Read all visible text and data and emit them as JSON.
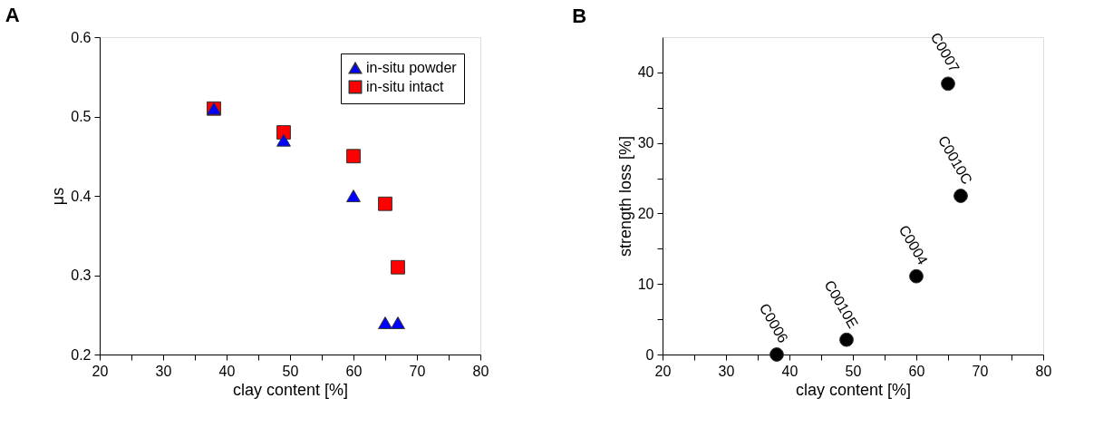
{
  "chart_data": [
    {
      "type": "scatter",
      "title": "A",
      "xlabel": "clay content [%]",
      "ylabel": "μs",
      "xlim": [
        20,
        80
      ],
      "ylim": [
        0.2,
        0.6
      ],
      "xticks": [
        20,
        {
          "value": 25,
          "label": null
        },
        30,
        {
          "value": 35,
          "label": null
        },
        40,
        {
          "value": 45,
          "label": null
        },
        50,
        {
          "value": 55,
          "label": null
        },
        60,
        {
          "value": 65,
          "label": null
        },
        70,
        {
          "value": 75,
          "label": null
        },
        80
      ],
      "yticks": [
        0.2,
        0.3,
        0.4,
        0.5,
        0.6
      ],
      "grid": false,
      "legend": "top right",
      "series": [
        {
          "name": "in-situ powder",
          "color": "#0000ff",
          "marker": "triangle",
          "x": [
            38,
            49,
            60,
            65,
            67
          ],
          "values": [
            0.51,
            0.47,
            0.4,
            0.24,
            0.24
          ]
        },
        {
          "name": "in-situ intact",
          "color": "#ff0000",
          "marker": "square",
          "x": [
            38,
            49,
            60,
            65,
            67
          ],
          "values": [
            0.51,
            0.48,
            0.45,
            0.39,
            0.31
          ]
        }
      ]
    },
    {
      "type": "scatter",
      "title": "B",
      "xlabel": "clay content [%]",
      "ylabel": "strength loss [%]",
      "xlim": [
        20,
        80
      ],
      "ylim": [
        0,
        45
      ],
      "xticks": [
        20,
        {
          "value": 25,
          "label": null
        },
        30,
        {
          "value": 35,
          "label": null
        },
        40,
        {
          "value": 45,
          "label": null
        },
        50,
        {
          "value": 55,
          "label": null
        },
        60,
        {
          "value": 65,
          "label": null
        },
        70,
        {
          "value": 75,
          "label": null
        },
        80
      ],
      "yticks": [
        0,
        {
          "value": 5,
          "label": null
        },
        10,
        {
          "value": 15,
          "label": null
        },
        20,
        {
          "value": 25,
          "label": null
        },
        30,
        {
          "value": 35,
          "label": null
        },
        40
      ],
      "grid": false,
      "legend": false,
      "series": [
        {
          "color": "#000000",
          "marker": "circle",
          "x": [
            38,
            49,
            60,
            65,
            67
          ],
          "values": [
            0,
            2.1,
            11.1,
            38.4,
            22.5
          ]
        }
      ],
      "annotations": [
        {
          "text": "C0006",
          "x": 38,
          "y": 0
        },
        {
          "text": "C0010E",
          "x": 49,
          "y": 2.1
        },
        {
          "text": "C0004",
          "x": 60,
          "y": 11.1
        },
        {
          "text": "C0007",
          "x": 65,
          "y": 38.4
        },
        {
          "text": "C0010C",
          "x": 67,
          "y": 22.5
        }
      ]
    }
  ]
}
